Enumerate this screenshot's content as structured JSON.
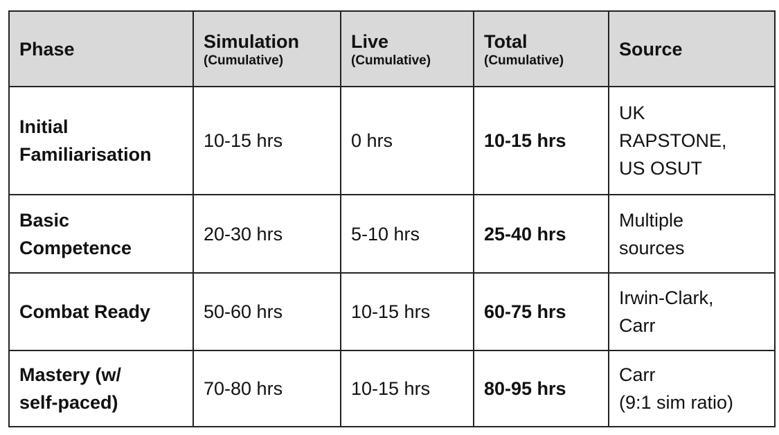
{
  "table": {
    "header": [
      {
        "title": "Phase"
      },
      {
        "title": "Simulation",
        "note": "(Cumulative)"
      },
      {
        "title": "Live",
        "note": "(Cumulative)"
      },
      {
        "title": "Total",
        "note": "(Cumulative)"
      },
      {
        "title": "Source"
      }
    ],
    "rows": [
      {
        "phase": [
          "Initial",
          "Familiarisation"
        ],
        "simulation": "10-15 hrs",
        "live": "0 hrs",
        "total": "10-15 hrs",
        "source": [
          "UK",
          "RAPSTONE,",
          "US OSUT"
        ]
      },
      {
        "phase": [
          "Basic",
          "Competence"
        ],
        "simulation": "20-30 hrs",
        "live": "5-10 hrs",
        "total": "25-40 hrs",
        "source": [
          "Multiple",
          "sources"
        ]
      },
      {
        "phase": [
          "Combat Ready"
        ],
        "simulation": "50-60 hrs",
        "live": "10-15 hrs",
        "total": "60-75 hrs",
        "source": [
          "Irwin-Clark,",
          "Carr"
        ]
      },
      {
        "phase": [
          "Mastery (w/",
          "self-paced)"
        ],
        "simulation": "70-80 hrs",
        "live": "10-15 hrs",
        "total": "80-95 hrs",
        "source": [
          "Carr",
          "(9:1 sim ratio)"
        ]
      }
    ]
  }
}
